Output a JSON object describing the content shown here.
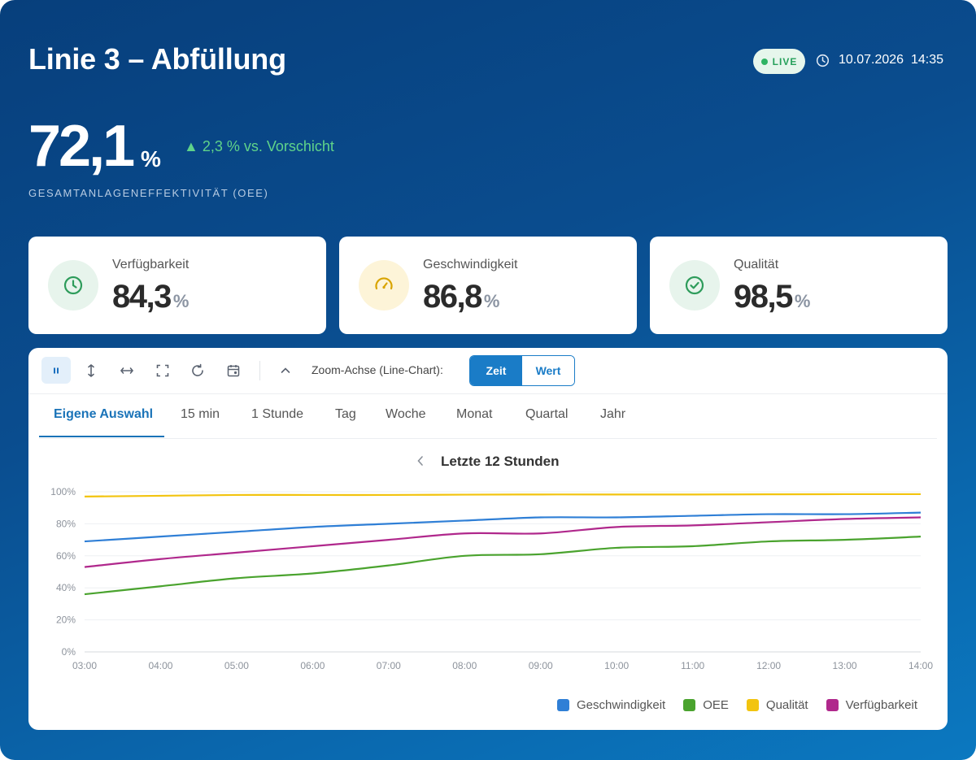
{
  "header": {
    "title": "Linie 3 – Abfüllung",
    "live_label": "LIVE",
    "date": "10.07.2026",
    "time": "14:35"
  },
  "oee": {
    "value": "72,1",
    "unit": "%",
    "trend": "▲ 2,3 % vs. Vorschicht",
    "label": "GESAMTANLAGENEFFEKTIVITÄT (OEE)"
  },
  "kpis": [
    {
      "label": "Verfügbarkeit",
      "value": "84,3",
      "unit": "%",
      "icon": "clock-icon",
      "color": "#2e9c5b",
      "bg": "#e7f4ec"
    },
    {
      "label": "Geschwindigkeit",
      "value": "86,8",
      "unit": "%",
      "icon": "speedometer-icon",
      "color": "#d9a400",
      "bg": "#fdf4d8"
    },
    {
      "label": "Qualität",
      "value": "98,5",
      "unit": "%",
      "icon": "check-circle-icon",
      "color": "#2e9c5b",
      "bg": "#e7f4ec"
    }
  ],
  "toolbar": {
    "zoom_label": "Zoom-Achse (Line-Chart):",
    "zoom_options": [
      "Zeit",
      "Wert"
    ],
    "zoom_selected": "Zeit",
    "icons": [
      "pause-icon",
      "vertical-zoom-icon",
      "horizontal-zoom-icon",
      "fullscreen-icon",
      "refresh-icon",
      "calendar-icon",
      "chevron-up-icon"
    ]
  },
  "tabs": [
    "Eigene Auswahl",
    "15 min",
    "1 Stunde",
    "Tag",
    "Woche",
    "Monat",
    "Quartal",
    "Jahr"
  ],
  "active_tab": "Eigene Auswahl",
  "range_title": "Letzte 12 Stunden",
  "chart_data": {
    "type": "line",
    "x": [
      "03:00",
      "04:00",
      "05:00",
      "06:00",
      "07:00",
      "08:00",
      "09:00",
      "10:00",
      "11:00",
      "12:00",
      "13:00",
      "14:00"
    ],
    "ylim": [
      0,
      100
    ],
    "yticks": [
      "0%",
      "20%",
      "40%",
      "60%",
      "80%",
      "100%"
    ],
    "grid": true,
    "legend_position": "bottom-right",
    "series": [
      {
        "name": "Geschwindigkeit",
        "color": "#2f7fd6",
        "values": [
          69,
          72,
          75,
          78,
          80,
          82,
          84,
          84,
          85,
          86,
          86,
          87
        ]
      },
      {
        "name": "OEE",
        "color": "#4aa32e",
        "values": [
          36,
          41,
          46,
          49,
          54,
          60,
          61,
          65,
          66,
          69,
          70,
          72
        ]
      },
      {
        "name": "Qualität",
        "color": "#f2c40f",
        "values": [
          97,
          97.5,
          98,
          98,
          98,
          98.2,
          98.3,
          98.3,
          98.3,
          98.4,
          98.5,
          98.5
        ]
      },
      {
        "name": "Verfügbarkeit",
        "color": "#b0288c",
        "values": [
          53,
          58,
          62,
          66,
          70,
          74,
          74,
          78,
          79,
          81,
          83,
          84
        ]
      }
    ]
  }
}
